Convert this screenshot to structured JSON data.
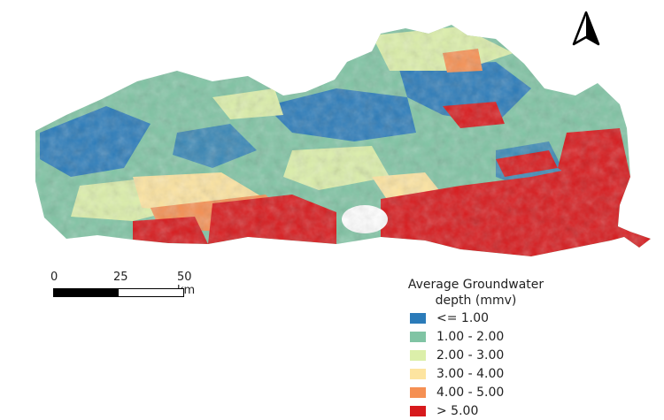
{
  "legend": {
    "title_line1": "Average Groundwater",
    "title_line2": "depth (mmv)",
    "classes": [
      {
        "label": "<= 1.00",
        "color": "#2b7bb9"
      },
      {
        "label": "1.00 - 2.00",
        "color": "#80c4a4"
      },
      {
        "label": "2.00 - 3.00",
        "color": "#dcefaa"
      },
      {
        "label": "3.00 - 4.00",
        "color": "#fde4a0"
      },
      {
        "label": "4.00 - 5.00",
        "color": "#f59053"
      },
      {
        "label": "> 5.00",
        "color": "#d7191c"
      }
    ]
  },
  "scale_bar": {
    "label_0": "0",
    "label_1": "25",
    "label_2": "50 km"
  },
  "north_arrow": {
    "icon": "north-arrow-icon"
  }
}
